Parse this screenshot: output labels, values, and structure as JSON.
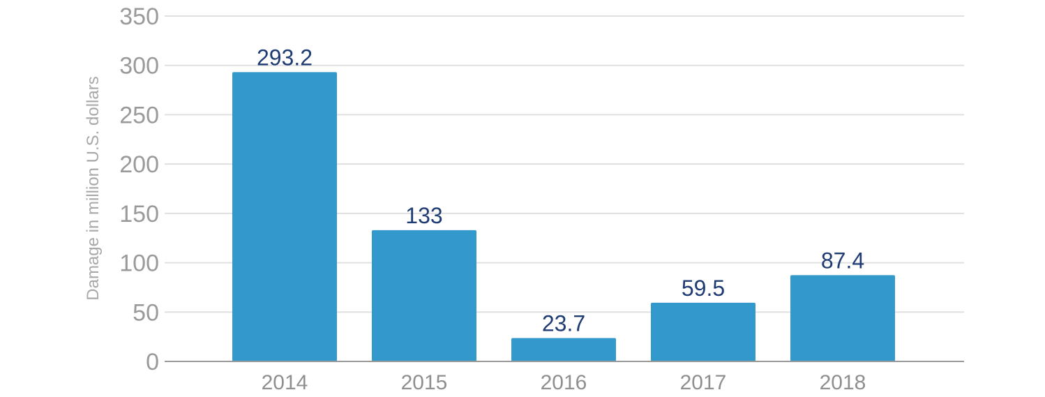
{
  "chart_data": {
    "type": "bar",
    "categories": [
      "2014",
      "2015",
      "2016",
      "2017",
      "2018"
    ],
    "values": [
      293.2,
      133,
      23.7,
      59.5,
      87.4
    ],
    "value_labels": [
      "293.2",
      "133",
      "23.7",
      "59.5",
      "87.4"
    ],
    "title": "",
    "xlabel": "",
    "ylabel": "Damage in million U.S. dollars",
    "ylim": [
      0,
      350
    ],
    "yticks": [
      0,
      50,
      100,
      150,
      200,
      250,
      300,
      350
    ],
    "grid": true,
    "legend": "none"
  },
  "colors": {
    "bar": "#3399cc",
    "value_label": "#1f3b73",
    "gridline": "#e0e0e0",
    "axis": "#999999"
  }
}
